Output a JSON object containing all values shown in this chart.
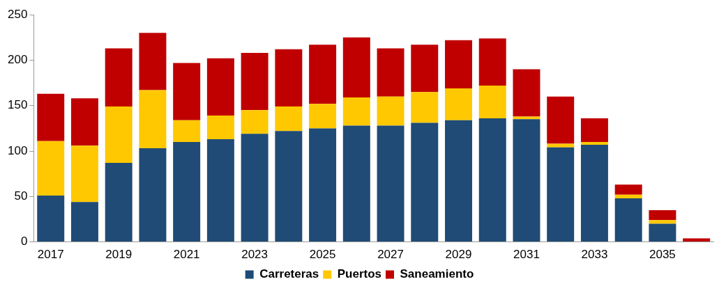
{
  "chart_data": {
    "type": "bar",
    "stacked": true,
    "categories": [
      "2017",
      null,
      "2019",
      null,
      "2021",
      null,
      "2023",
      null,
      "2025",
      null,
      "2027",
      null,
      "2029",
      null,
      "2031",
      null,
      "2033",
      null,
      "2035",
      null
    ],
    "series": [
      {
        "name": "Carreteras",
        "color": "#1f4b76",
        "values": [
          51,
          44,
          87,
          103,
          110,
          113,
          119,
          122,
          125,
          128,
          128,
          131,
          134,
          136,
          135,
          104,
          107,
          48,
          20,
          0
        ]
      },
      {
        "name": "Puertos",
        "color": "#ffc800",
        "values": [
          60,
          62,
          62,
          64,
          24,
          26,
          26,
          27,
          27,
          31,
          32,
          34,
          35,
          36,
          3,
          4,
          3,
          4,
          4,
          0
        ]
      },
      {
        "name": "Saneamiento",
        "color": "#c00000",
        "values": [
          52,
          52,
          64,
          63,
          63,
          63,
          63,
          63,
          65,
          66,
          53,
          52,
          53,
          52,
          52,
          52,
          26,
          11,
          11,
          4
        ]
      }
    ],
    "ylim": [
      0,
      250
    ],
    "yticks": [
      0,
      50,
      100,
      150,
      200,
      250
    ],
    "grid": false,
    "legend": "bottom"
  }
}
